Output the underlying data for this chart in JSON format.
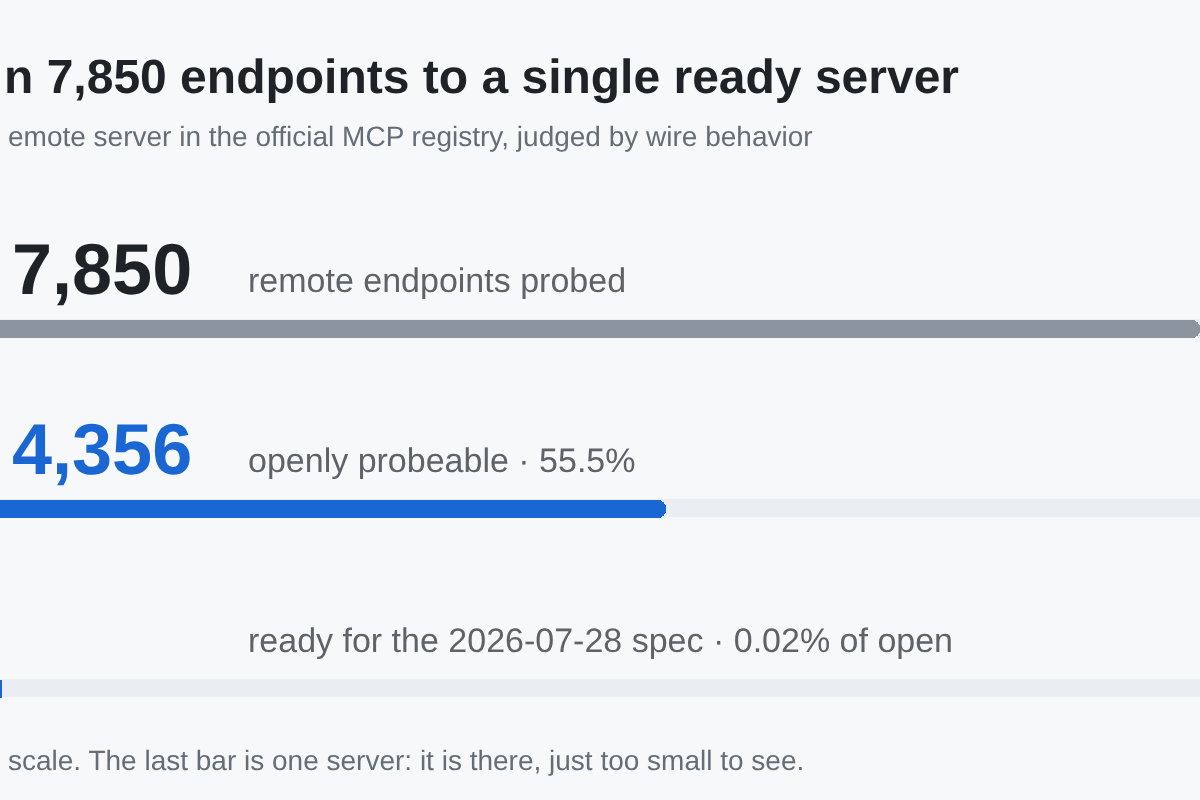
{
  "chart_data": {
    "type": "bar",
    "orientation": "horizontal",
    "title": "n 7,850 endpoints to a single ready server",
    "subtitle": "emote server in the official MCP registry, judged by wire behavior",
    "categories": [
      "remote endpoints probed",
      "openly probeable · 55.5%",
      "ready for the 2026-07-28 spec · 0.02% of open"
    ],
    "values": [
      7850,
      4356,
      1
    ],
    "colors": [
      "#8c959f",
      "#1a66d3",
      "#1a66d3"
    ],
    "value_labels": [
      "7,850",
      "4,356",
      null
    ],
    "annotations": [
      "scale. The last bar is one server: it is there, just too small to see."
    ]
  }
}
